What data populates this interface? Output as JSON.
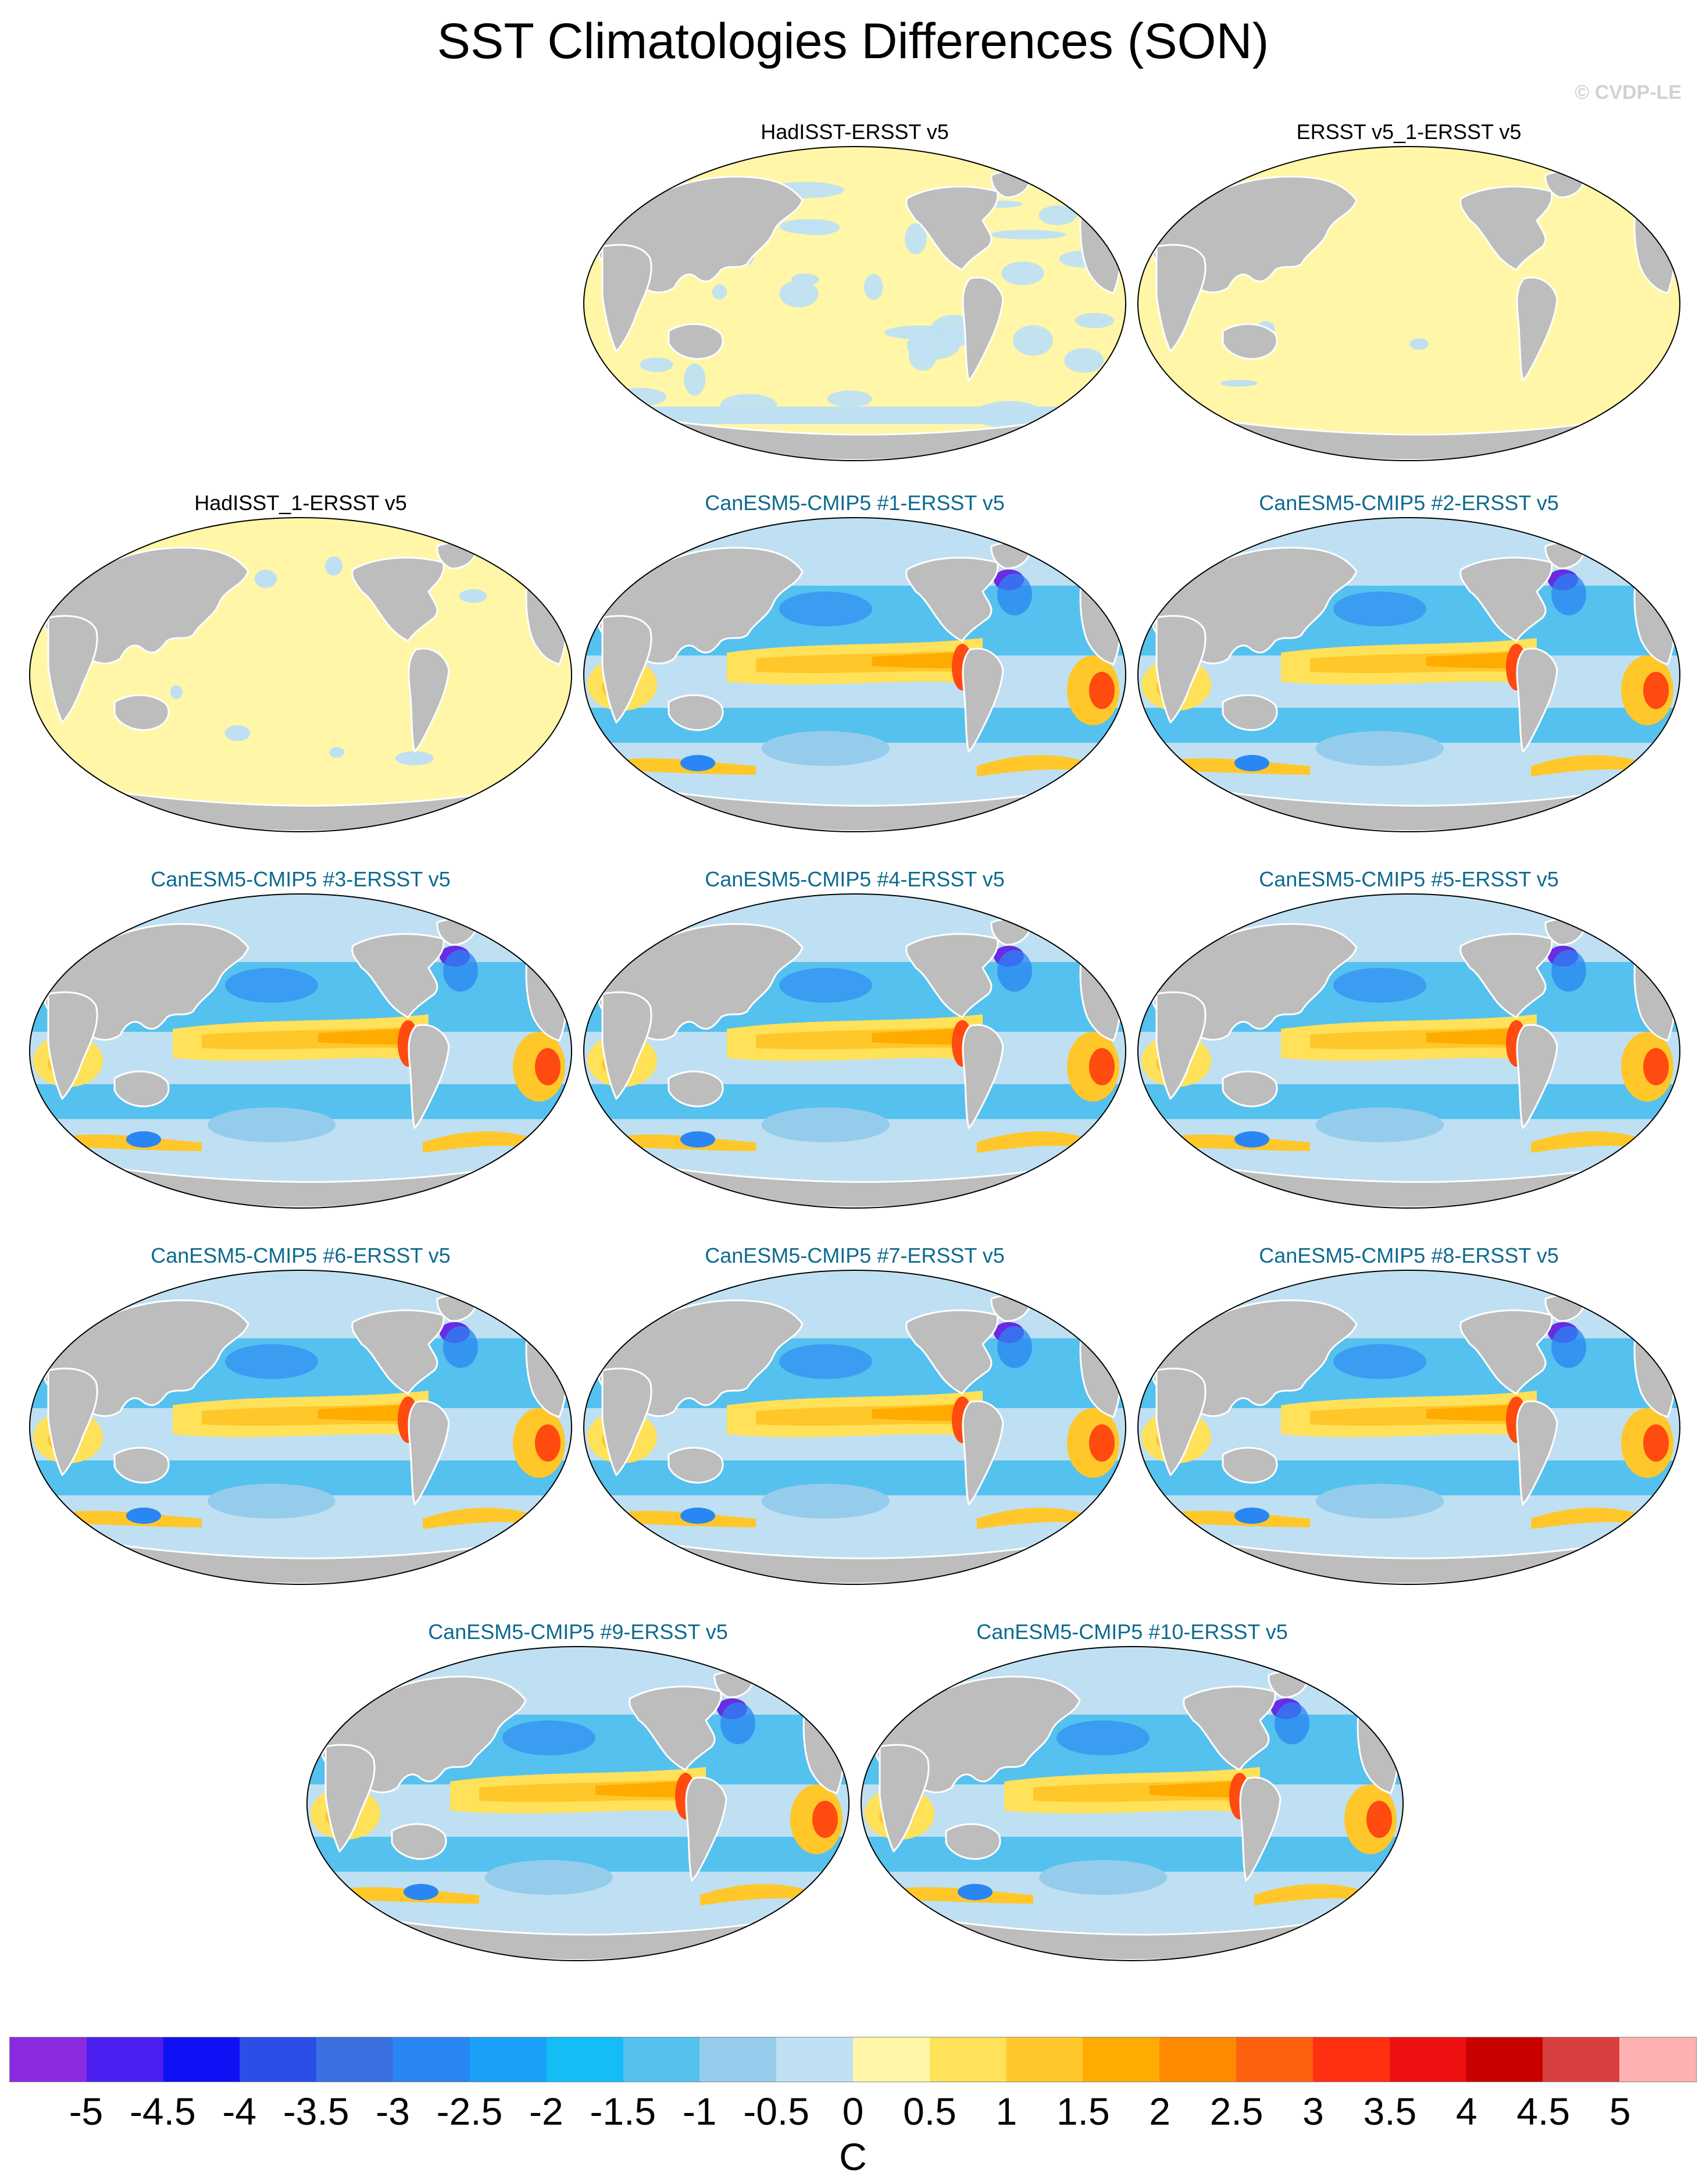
{
  "figure": {
    "title": "SST Climatologies Differences (SON)",
    "credit": "© CVDP-LE"
  },
  "panels": [
    {
      "title": "HadISST-ERSST v5",
      "type": "obs",
      "pattern": "obs-mixed",
      "land_color": "#bdbdbd"
    },
    {
      "title": "ERSST v5_1-ERSST v5",
      "type": "obs",
      "pattern": "near-zero"
    },
    {
      "title": "HadISST_1-ERSST v5",
      "type": "obs",
      "pattern": "near-zero-patchy"
    },
    {
      "title": "CanESM5-CMIP5 #1-ERSST v5",
      "type": "model",
      "pattern": "model-bias"
    },
    {
      "title": "CanESM5-CMIP5 #2-ERSST v5",
      "type": "model",
      "pattern": "model-bias"
    },
    {
      "title": "CanESM5-CMIP5 #3-ERSST v5",
      "type": "model",
      "pattern": "model-bias"
    },
    {
      "title": "CanESM5-CMIP5 #4-ERSST v5",
      "type": "model",
      "pattern": "model-bias"
    },
    {
      "title": "CanESM5-CMIP5 #5-ERSST v5",
      "type": "model",
      "pattern": "model-bias"
    },
    {
      "title": "CanESM5-CMIP5 #6-ERSST v5",
      "type": "model",
      "pattern": "model-bias"
    },
    {
      "title": "CanESM5-CMIP5 #7-ERSST v5",
      "type": "model",
      "pattern": "model-bias"
    },
    {
      "title": "CanESM5-CMIP5 #8-ERSST v5",
      "type": "model",
      "pattern": "model-bias"
    },
    {
      "title": "CanESM5-CMIP5 #9-ERSST v5",
      "type": "model",
      "pattern": "model-bias"
    },
    {
      "title": "CanESM5-CMIP5 #10-ERSST v5",
      "type": "model",
      "pattern": "model-bias"
    }
  ],
  "colorbar": {
    "units": "C",
    "tick_labels": [
      "-5",
      "-4.5",
      "-4",
      "-3.5",
      "-3",
      "-2.5",
      "-2",
      "-1.5",
      "-1",
      "-0.5",
      "0",
      "0.5",
      "1",
      "1.5",
      "2",
      "2.5",
      "3",
      "3.5",
      "4",
      "4.5",
      "5"
    ],
    "colors": [
      "#8a2be2",
      "#4b1ff0",
      "#1010f5",
      "#2b4ee6",
      "#3a6fe0",
      "#2a86f2",
      "#1aa0f7",
      "#14bdf5",
      "#55c1ef",
      "#96cceb",
      "#bfe0f2",
      "#fff6a8",
      "#ffe15a",
      "#ffc72a",
      "#ffab00",
      "#ff8a00",
      "#ff6010",
      "#ff3010",
      "#ee1010",
      "#c80000",
      "#d84040",
      "#ffb0b0"
    ]
  },
  "chart_data": {
    "type": "heatmap",
    "title": "SST Climatologies Differences (SON)",
    "units": "C",
    "colorbar_range": [
      -5,
      5
    ],
    "colorbar_interval": 0.5,
    "panel_count": 13
  }
}
